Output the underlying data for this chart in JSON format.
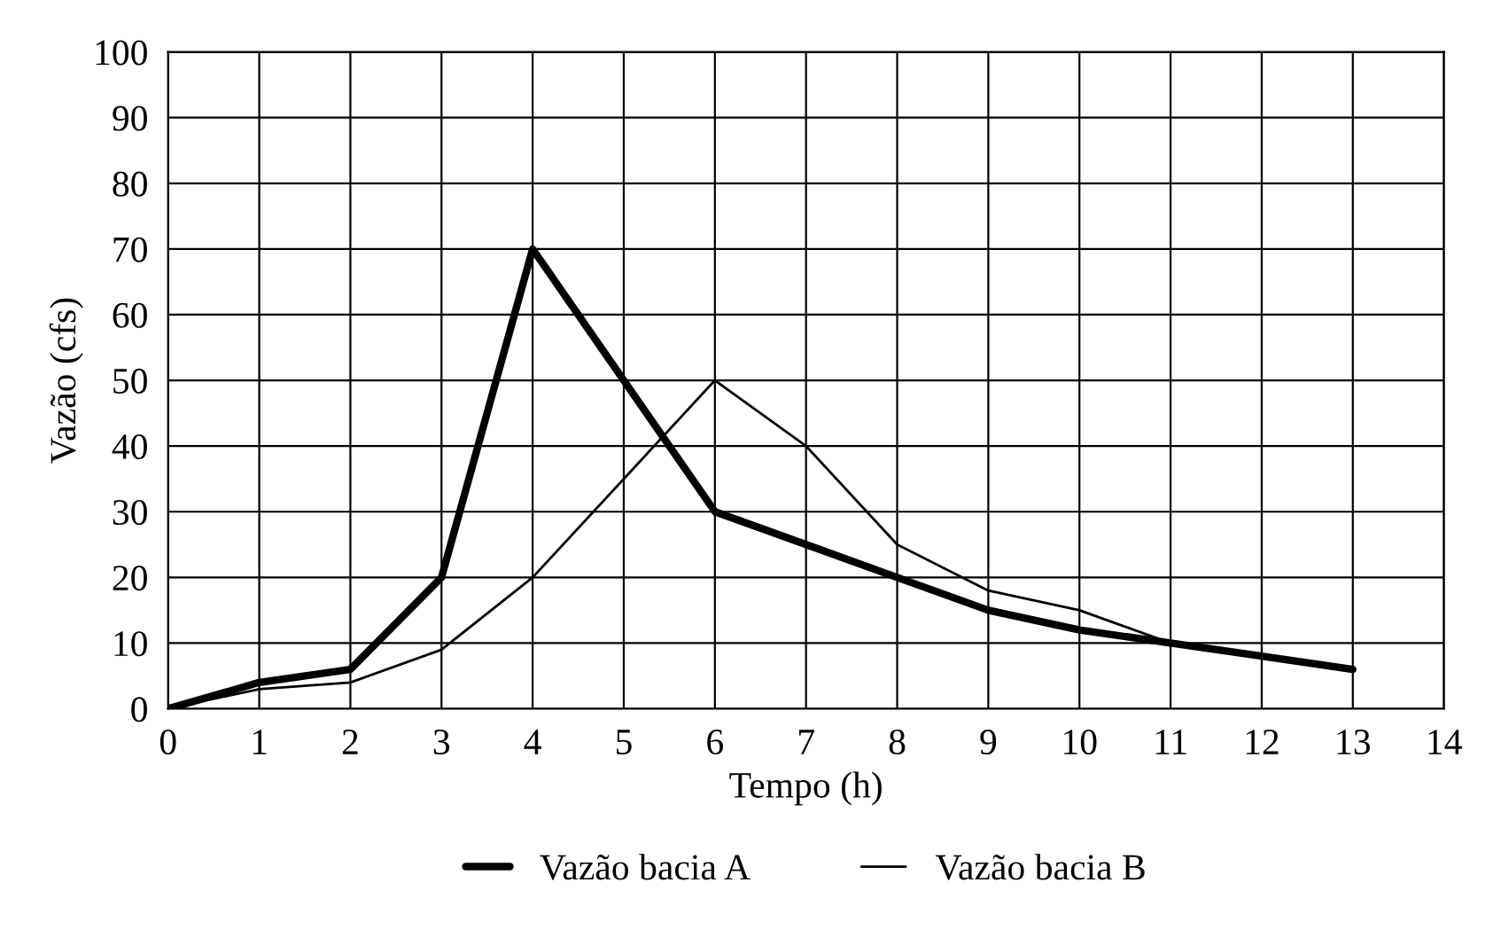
{
  "chart_data": {
    "type": "line",
    "xlabel": "Tempo (h)",
    "ylabel": "Vazão (cfs)",
    "x": [
      0,
      1,
      2,
      3,
      4,
      5,
      6,
      7,
      8,
      9,
      10,
      11,
      12,
      13
    ],
    "series": [
      {
        "name": "Vazão bacia A",
        "color": "#000000",
        "values": [
          0,
          4,
          6,
          20,
          70,
          50,
          30,
          25,
          20,
          15,
          12,
          10,
          8,
          6
        ]
      },
      {
        "name": "Vazão bacia B",
        "color": "#000000",
        "values": [
          0,
          3,
          4,
          9,
          20,
          35,
          50,
          40,
          25,
          18,
          15,
          10,
          8,
          6
        ]
      }
    ],
    "xlim": [
      0,
      14
    ],
    "ylim": [
      0,
      100
    ],
    "xticks": [
      0,
      1,
      2,
      3,
      4,
      5,
      6,
      7,
      8,
      9,
      10,
      11,
      12,
      13,
      14
    ],
    "yticks": [
      0,
      10,
      20,
      30,
      40,
      50,
      60,
      70,
      80,
      90,
      100
    ],
    "grid": true,
    "legend": "bottom",
    "marker": "none",
    "line_style": "solid"
  }
}
